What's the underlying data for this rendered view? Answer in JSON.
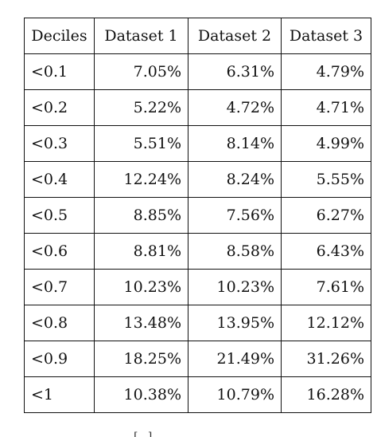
{
  "table": {
    "headers": [
      "Deciles",
      "Dataset 1",
      "Dataset 2",
      "Dataset 3"
    ],
    "rows": [
      [
        "<0.1",
        "7.05%",
        "6.31%",
        "4.79%"
      ],
      [
        "<0.2",
        "5.22%",
        "4.72%",
        "4.71%"
      ],
      [
        "<0.3",
        "5.51%",
        "8.14%",
        "4.99%"
      ],
      [
        "<0.4",
        "12.24%",
        "8.24%",
        "5.55%"
      ],
      [
        "<0.5",
        "8.85%",
        "7.56%",
        "6.27%"
      ],
      [
        "<0.6",
        "8.81%",
        "8.58%",
        "6.43%"
      ],
      [
        "<0.7",
        "10.23%",
        "10.23%",
        "7.61%"
      ],
      [
        "<0.8",
        "13.48%",
        "13.95%",
        "12.12%"
      ],
      [
        "<0.9",
        "18.25%",
        "21.49%",
        "31.26%"
      ],
      [
        "<1",
        "10.38%",
        "10.79%",
        "16.28%"
      ]
    ]
  },
  "fragments": {
    "bottom": "[ ]"
  }
}
